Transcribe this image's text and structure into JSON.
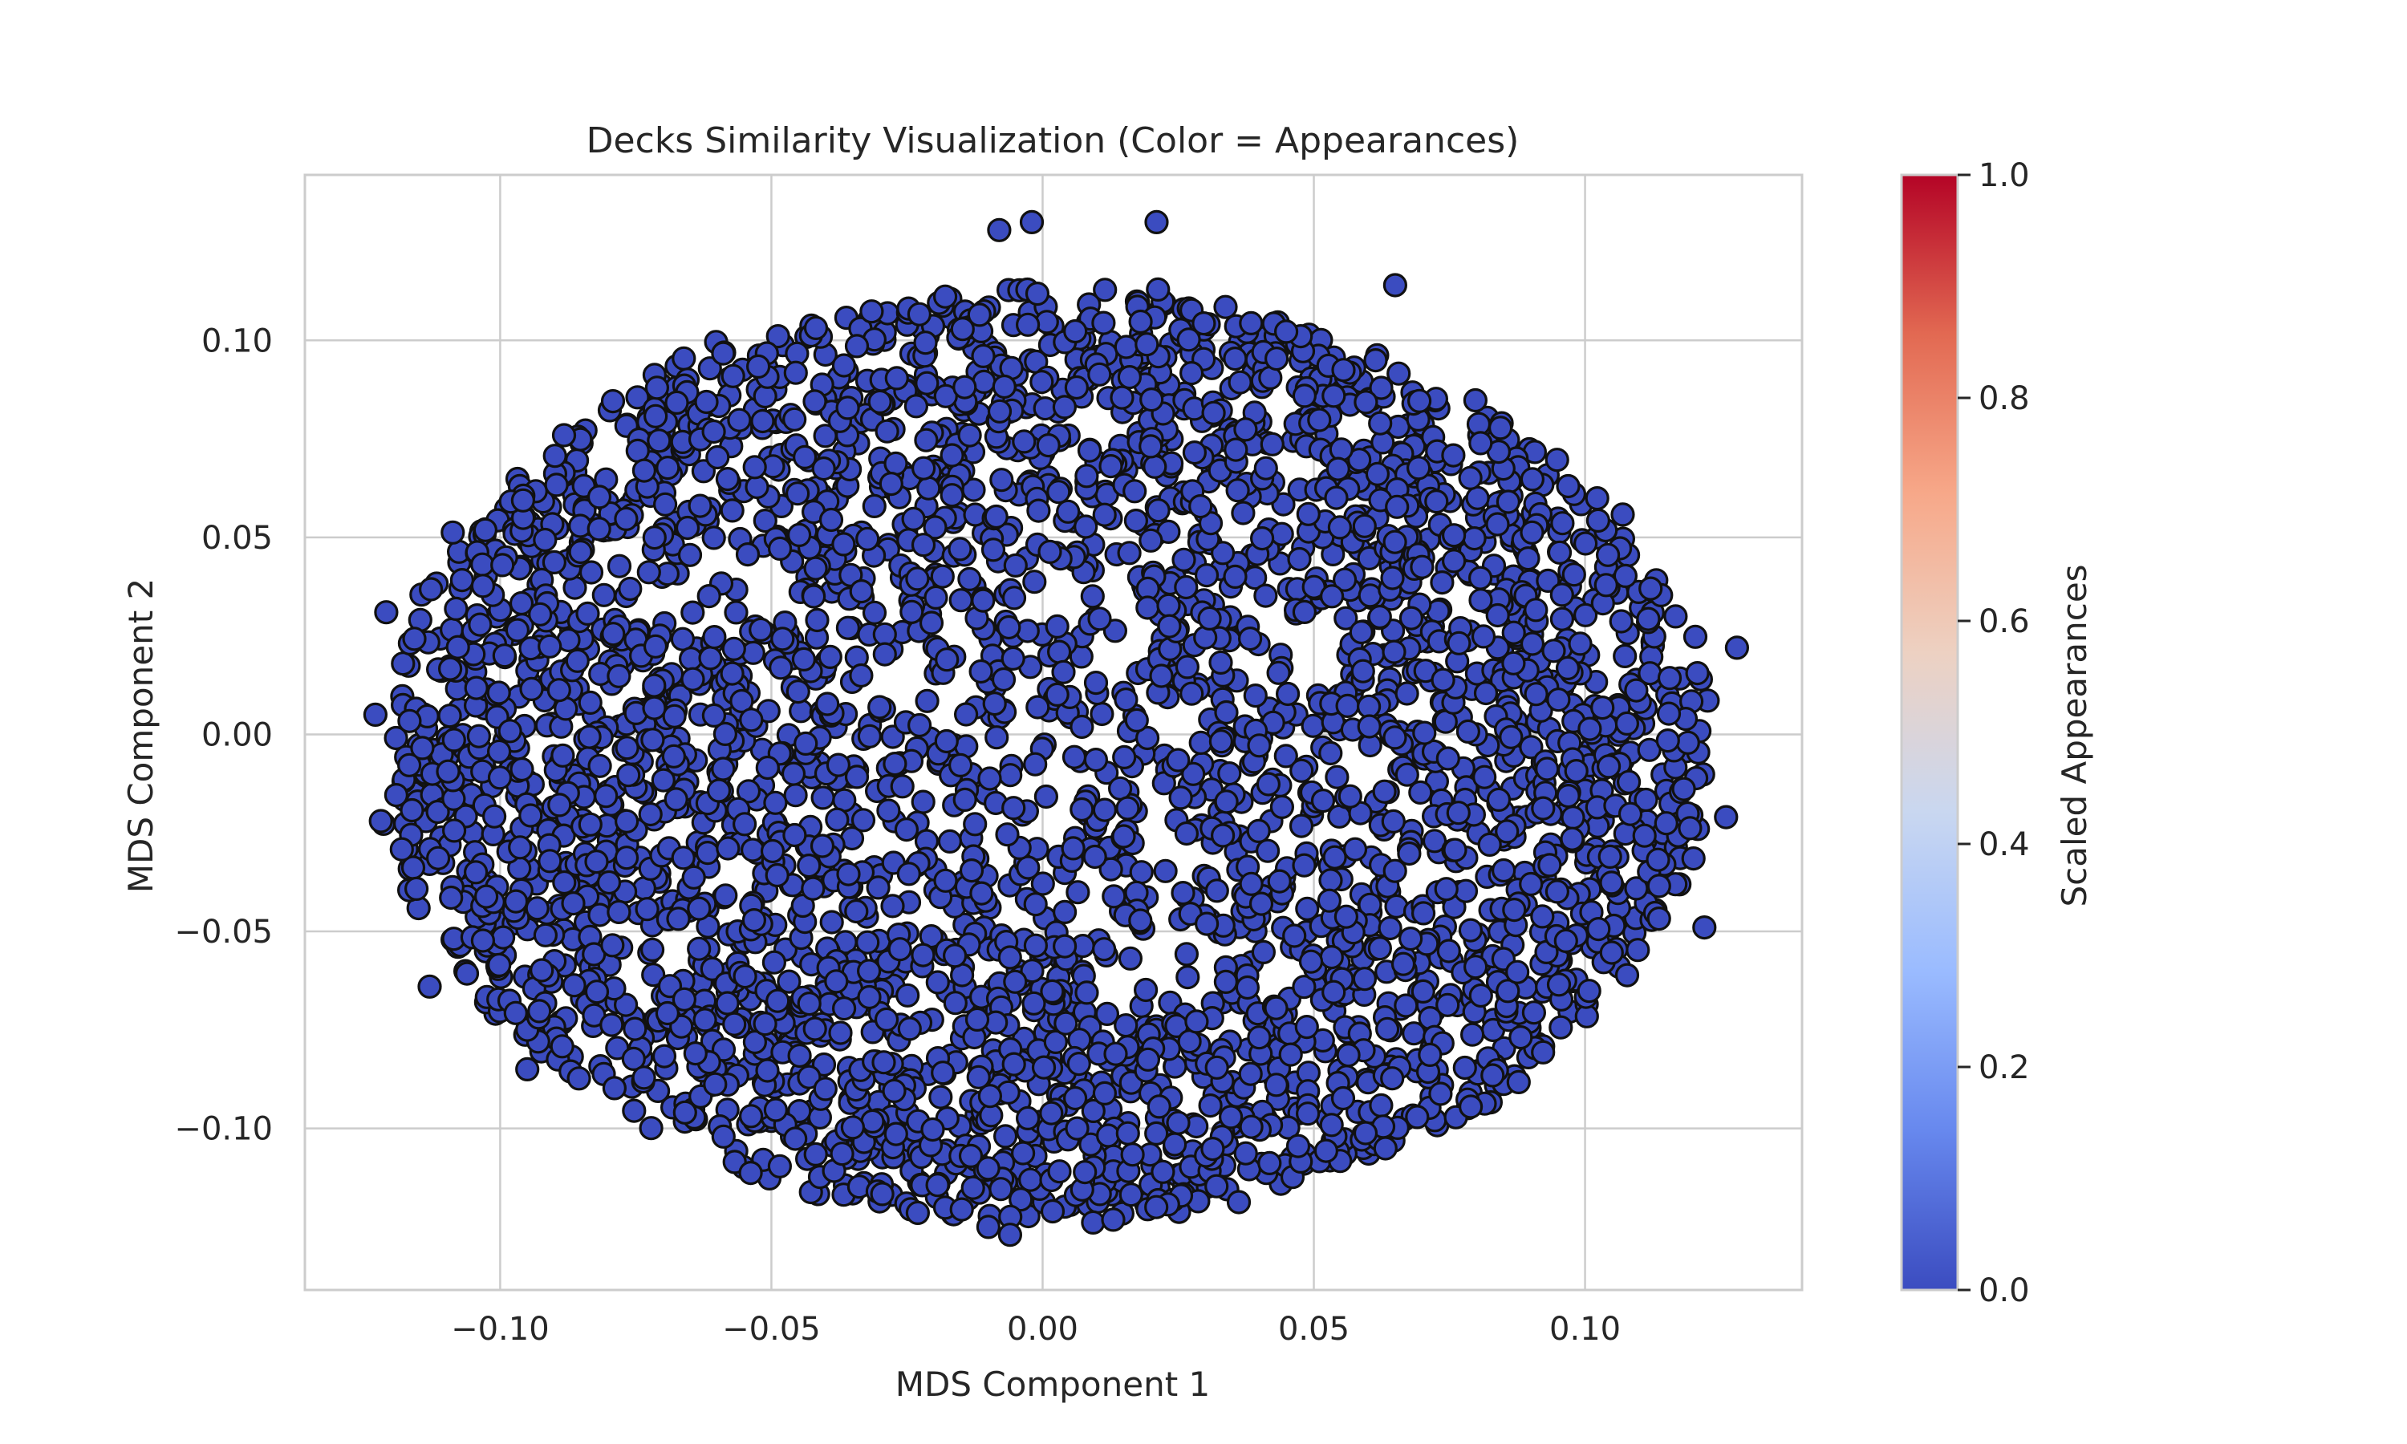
{
  "chart_data": {
    "type": "scatter",
    "title": "Decks Similarity Visualization (Color = Appearances)",
    "xlabel": "MDS Component 1",
    "ylabel": "MDS Component 2",
    "xlim": [
      -0.136,
      0.14
    ],
    "ylim": [
      -0.141,
      0.142
    ],
    "x_ticks": [
      -0.1,
      -0.05,
      0.0,
      0.05,
      0.1
    ],
    "x_tick_labels": [
      "−0.10",
      "−0.05",
      "0.00",
      "0.05",
      "0.10"
    ],
    "y_ticks": [
      -0.1,
      -0.05,
      0.0,
      0.05,
      0.1
    ],
    "y_tick_labels": [
      "−0.10",
      "−0.05",
      "0.00",
      "0.05",
      "0.10"
    ],
    "grid": true,
    "marker": {
      "fill": "#3b4cc0",
      "edge": "#111111"
    },
    "distribution": {
      "shape": "ellipse",
      "center": [
        0.0,
        -0.005
      ],
      "semi_axis_x": 0.122,
      "semi_axis_y": 0.118,
      "approx_point_count": 3600
    },
    "notable_points": [
      {
        "x": 0.128,
        "y": 0.022
      },
      {
        "x": 0.126,
        "y": -0.021
      },
      {
        "x": -0.123,
        "y": 0.005
      },
      {
        "x": -0.122,
        "y": -0.022
      },
      {
        "x": -0.121,
        "y": 0.031
      },
      {
        "x": -0.113,
        "y": -0.064
      },
      {
        "x": -0.008,
        "y": 0.128
      },
      {
        "x": -0.002,
        "y": 0.13
      },
      {
        "x": 0.021,
        "y": 0.13
      },
      {
        "x": 0.065,
        "y": 0.114
      },
      {
        "x": -0.006,
        "y": -0.127
      },
      {
        "x": -0.01,
        "y": -0.125
      },
      {
        "x": 0.122,
        "y": -0.049
      },
      {
        "x": -0.095,
        "y": -0.085
      }
    ],
    "colorbar": {
      "label": "Scaled Appearances",
      "range": [
        0.0,
        1.0
      ],
      "ticks": [
        0.0,
        0.2,
        0.4,
        0.6,
        0.8,
        1.0
      ],
      "tick_labels": [
        "0.0",
        "0.2",
        "0.4",
        "0.6",
        "0.8",
        "1.0"
      ],
      "colormap": "coolwarm",
      "colors": [
        "#3b4cc0",
        "#6788ee",
        "#9abbff",
        "#c9d7f0",
        "#edd1c2",
        "#f7a889",
        "#e26952",
        "#b40426"
      ]
    }
  }
}
